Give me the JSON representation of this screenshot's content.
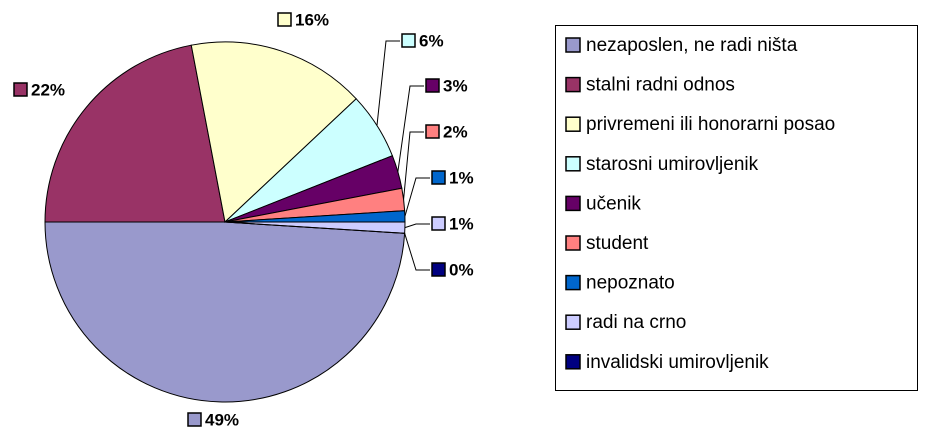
{
  "chart_data": {
    "type": "pie",
    "categories": [
      "nezaposlen, ne radi ništa",
      "stalni radni odnos",
      "privremeni ili honorarni posao",
      "starosni umirovljenik",
      "učenik",
      "student",
      "nepoznato",
      "radi na crno",
      "invalidski umirovljenik"
    ],
    "values": [
      49,
      22,
      16,
      6,
      3,
      2,
      1,
      1,
      0
    ],
    "value_labels": [
      "49%",
      "22%",
      "16%",
      "6%",
      "3%",
      "2%",
      "1%",
      "1%",
      "0%"
    ],
    "colors": [
      "#9999cc",
      "#993366",
      "#ffffcc",
      "#ccffff",
      "#660066",
      "#ff8080",
      "#0066cc",
      "#ccccff",
      "#000080"
    ],
    "legend": "right"
  }
}
